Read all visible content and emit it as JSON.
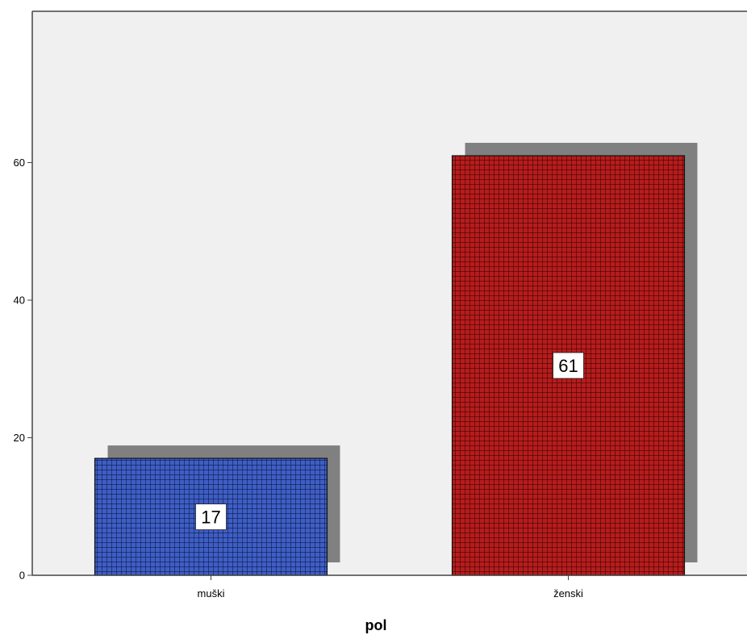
{
  "chart_data": {
    "type": "bar",
    "xlabel": "pol",
    "ylabel": "",
    "categories": [
      "muški",
      "ženski"
    ],
    "values": [
      17,
      61
    ],
    "data_labels": [
      "17",
      "61"
    ],
    "yticks": [
      "0",
      "20",
      "40",
      "60"
    ],
    "ylim": [
      0,
      82
    ],
    "grid": false,
    "legend": "none",
    "colors": [
      "#3f5ec4",
      "#b71c1c"
    ],
    "shadow_color": "#808080",
    "plot_background": "#f0f0f0",
    "bar_pattern": "grid"
  }
}
